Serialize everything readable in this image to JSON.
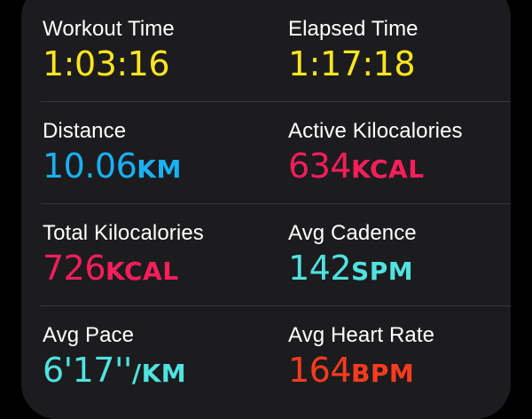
{
  "metrics": [
    {
      "label": "Workout Time",
      "value": "1:03:16",
      "unit": ""
    },
    {
      "label": "Elapsed Time",
      "value": "1:17:18",
      "unit": ""
    },
    {
      "label": "Distance",
      "value": "10.06",
      "unit": "KM"
    },
    {
      "label": "Active Kilocalories",
      "value": "634",
      "unit": "KCAL"
    },
    {
      "label": "Total Kilocalories",
      "value": "726",
      "unit": "KCAL"
    },
    {
      "label": "Avg Cadence",
      "value": "142",
      "unit": "SPM"
    },
    {
      "label": "Avg Pace",
      "value": "6'17''",
      "unit": "/KM"
    },
    {
      "label": "Avg Heart Rate",
      "value": "164",
      "unit": "BPM"
    }
  ],
  "colors": {
    "time": "#ffe620",
    "distance": "#1ab0f5",
    "kilocalories": "#fa1e5a",
    "cadence_pace": "#4fe3e0",
    "heart_rate": "#ff3b1f",
    "card_background": "#1c1c1e"
  }
}
